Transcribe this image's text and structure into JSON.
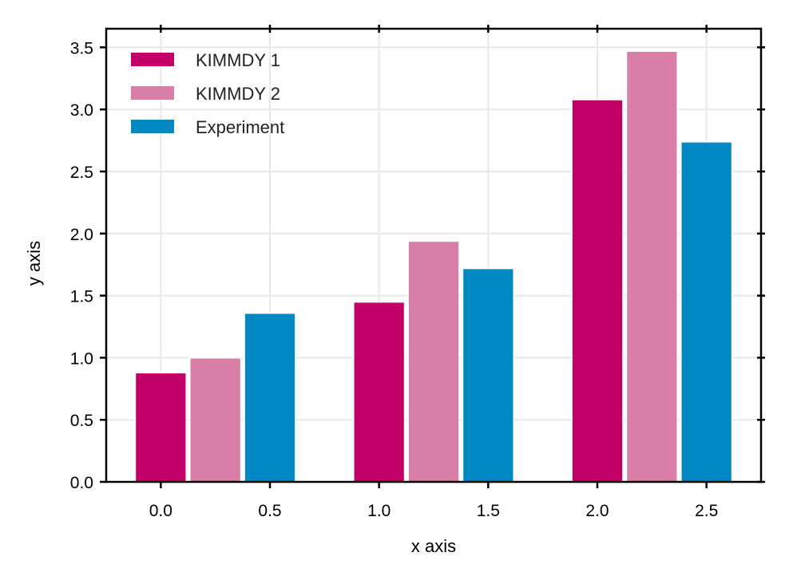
{
  "chart_data": {
    "type": "bar",
    "xlabel": "x axis",
    "ylabel": "y axis",
    "xlim": [
      -0.25,
      2.75
    ],
    "ylim": [
      0,
      3.65
    ],
    "xticks": [
      0.0,
      0.5,
      1.0,
      1.5,
      2.0,
      2.5
    ],
    "xtick_labels": [
      "0.0",
      "0.5",
      "1.0",
      "1.5",
      "2.0",
      "2.5"
    ],
    "yticks": [
      0.0,
      0.5,
      1.0,
      1.5,
      2.0,
      2.5,
      3.0,
      3.5
    ],
    "ytick_labels": [
      "0.0",
      "0.5",
      "1.0",
      "1.5",
      "2.0",
      "2.5",
      "3.0",
      "3.5"
    ],
    "grid": true,
    "legend_position": "top-left",
    "bar_width": 0.235,
    "series": [
      {
        "name": "KIMMDY 1",
        "color": "#c30067",
        "x": [
          0.0,
          1.0,
          2.0
        ],
        "values": [
          0.88,
          1.45,
          3.08
        ]
      },
      {
        "name": "KIMMDY 2",
        "color": "#d97ea6",
        "x": [
          0.25,
          1.25,
          2.25
        ],
        "values": [
          1.0,
          1.94,
          3.47
        ]
      },
      {
        "name": "Experiment",
        "color": "#0088c2",
        "x": [
          0.5,
          1.5,
          2.5
        ],
        "values": [
          1.36,
          1.72,
          2.74
        ]
      }
    ]
  }
}
